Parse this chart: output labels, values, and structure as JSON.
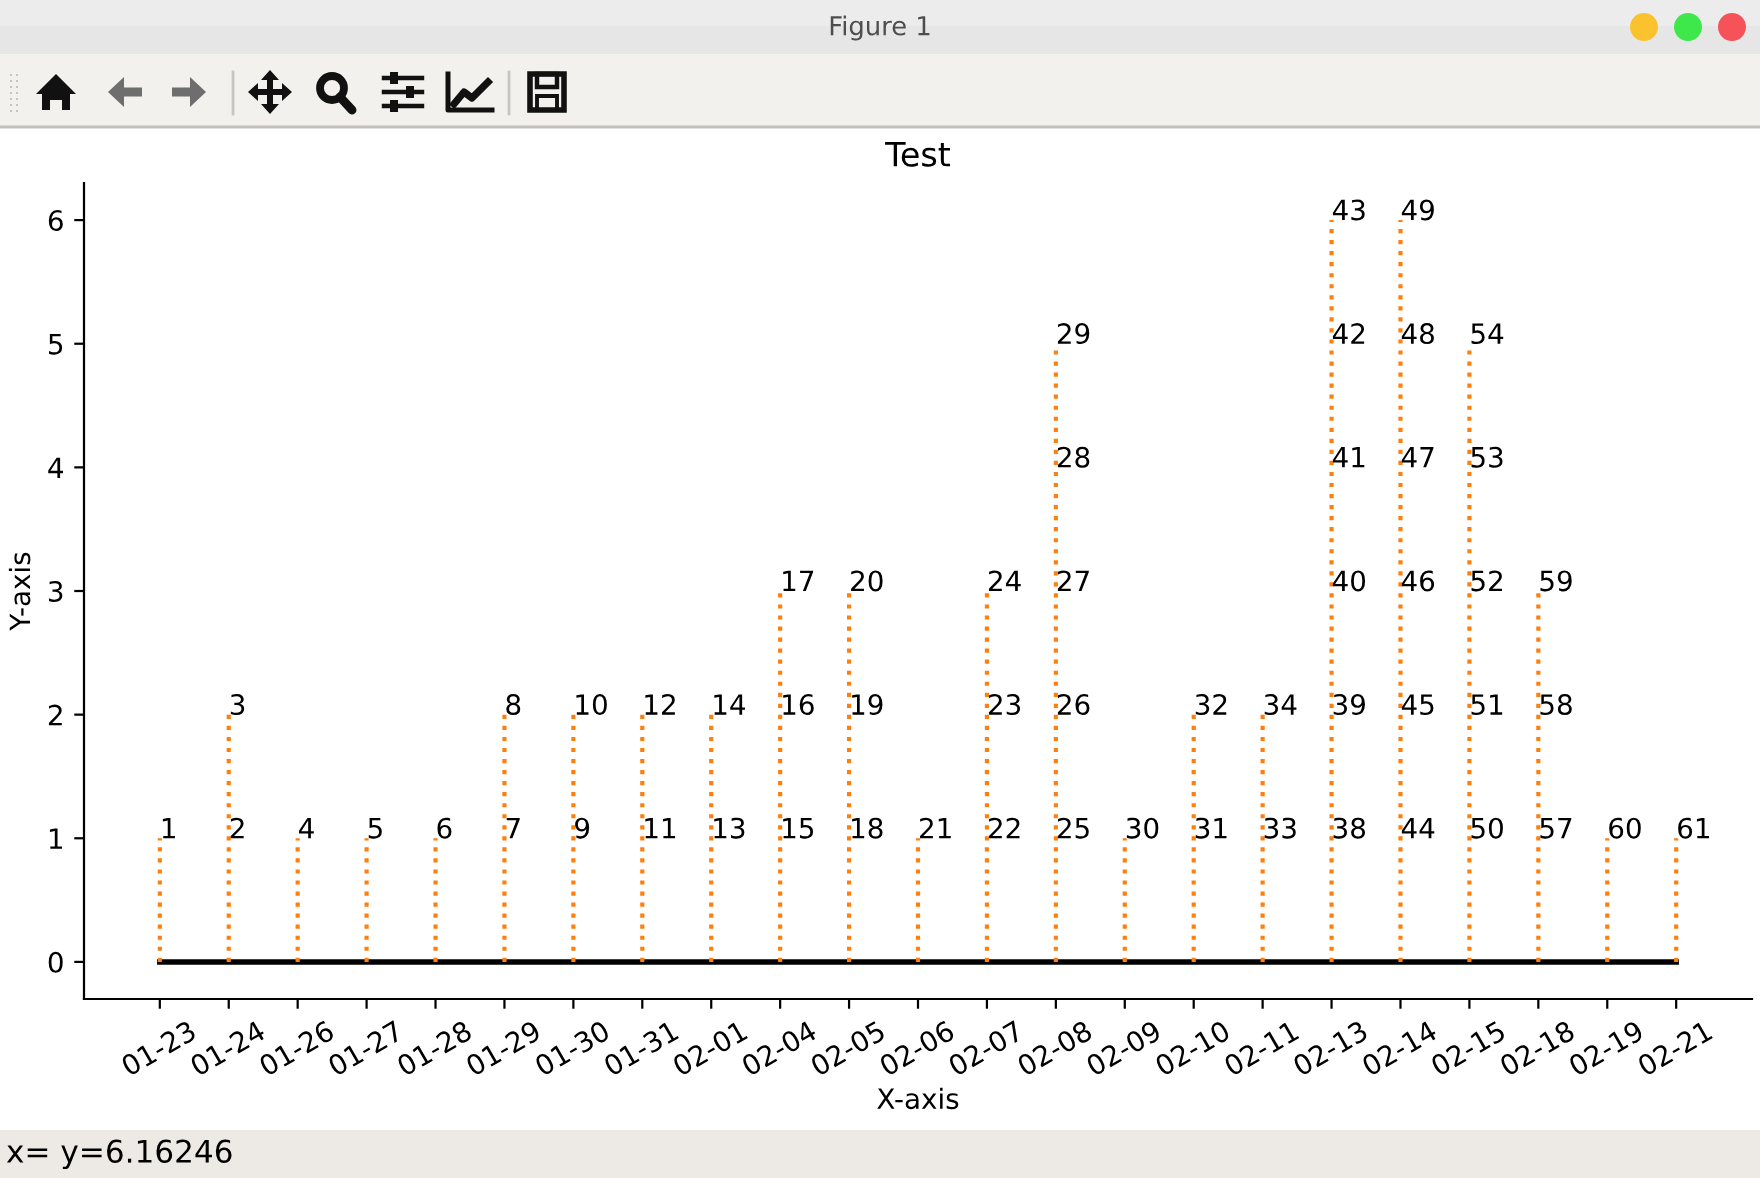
{
  "chart_data": {
    "type": "line",
    "title": "Test",
    "xlabel": "X-axis",
    "ylabel": "Y-axis",
    "categories": [
      "01-23",
      "01-24",
      "01-26",
      "01-27",
      "01-28",
      "01-29",
      "01-30",
      "01-31",
      "02-01",
      "02-04",
      "02-05",
      "02-06",
      "02-07",
      "02-08",
      "02-09",
      "02-10",
      "02-11",
      "02-13",
      "02-14",
      "02-15",
      "02-18",
      "02-19",
      "02-21"
    ],
    "series": [
      {
        "color": "#000000",
        "line_style": "solid",
        "values": [
          0,
          0,
          0,
          0,
          0,
          0,
          0,
          0,
          0,
          0,
          0,
          0,
          0,
          0,
          0,
          0,
          0,
          0,
          0,
          0,
          0,
          0,
          0
        ]
      },
      {
        "color": "#ff7f0e",
        "line_style": "dotted",
        "x": [
          "01-23",
          "01-23"
        ],
        "values": [
          0,
          1
        ]
      },
      {
        "color": "#ff7f0e",
        "line_style": "dotted",
        "x": [
          "01-24",
          "01-24",
          "01-24"
        ],
        "values": [
          0,
          1,
          2
        ]
      },
      {
        "color": "#ff7f0e",
        "line_style": "dotted",
        "x": [
          "01-26",
          "01-26"
        ],
        "values": [
          0,
          1
        ]
      },
      {
        "color": "#ff7f0e",
        "line_style": "dotted",
        "x": [
          "01-27",
          "01-27"
        ],
        "values": [
          0,
          1
        ]
      },
      {
        "color": "#ff7f0e",
        "line_style": "dotted",
        "x": [
          "01-28",
          "01-28"
        ],
        "values": [
          0,
          1
        ]
      },
      {
        "color": "#ff7f0e",
        "line_style": "dotted",
        "x": [
          "01-29",
          "01-29",
          "01-29"
        ],
        "values": [
          0,
          1,
          2
        ]
      },
      {
        "color": "#ff7f0e",
        "line_style": "dotted",
        "x": [
          "01-30",
          "01-30",
          "01-30"
        ],
        "values": [
          0,
          1,
          2
        ]
      },
      {
        "color": "#ff7f0e",
        "line_style": "dotted",
        "x": [
          "01-31",
          "01-31",
          "01-31"
        ],
        "values": [
          0,
          1,
          2
        ]
      },
      {
        "color": "#ff7f0e",
        "line_style": "dotted",
        "x": [
          "02-01",
          "02-01",
          "02-01"
        ],
        "values": [
          0,
          1,
          2
        ]
      },
      {
        "color": "#ff7f0e",
        "line_style": "dotted",
        "x": [
          "02-04",
          "02-04",
          "02-04",
          "02-04"
        ],
        "values": [
          0,
          1,
          2,
          3
        ]
      },
      {
        "color": "#ff7f0e",
        "line_style": "dotted",
        "x": [
          "02-05",
          "02-05",
          "02-05",
          "02-05"
        ],
        "values": [
          0,
          1,
          2,
          3
        ]
      },
      {
        "color": "#ff7f0e",
        "line_style": "dotted",
        "x": [
          "02-06",
          "02-06"
        ],
        "values": [
          0,
          1
        ]
      },
      {
        "color": "#ff7f0e",
        "line_style": "dotted",
        "x": [
          "02-07",
          "02-07",
          "02-07",
          "02-07"
        ],
        "values": [
          0,
          1,
          2,
          3
        ]
      },
      {
        "color": "#ff7f0e",
        "line_style": "dotted",
        "x": [
          "02-08",
          "02-08",
          "02-08",
          "02-08",
          "02-08",
          "02-08"
        ],
        "values": [
          0,
          1,
          2,
          3,
          4,
          5
        ]
      },
      {
        "color": "#ff7f0e",
        "line_style": "dotted",
        "x": [
          "02-09",
          "02-09"
        ],
        "values": [
          0,
          1
        ]
      },
      {
        "color": "#ff7f0e",
        "line_style": "dotted",
        "x": [
          "02-10",
          "02-10",
          "02-10"
        ],
        "values": [
          0,
          1,
          2
        ]
      },
      {
        "color": "#ff7f0e",
        "line_style": "dotted",
        "x": [
          "02-11",
          "02-11",
          "02-11"
        ],
        "values": [
          0,
          1,
          2
        ]
      },
      {
        "color": "#ff7f0e",
        "line_style": "dotted",
        "x": [
          "02-13",
          "02-13",
          "02-13",
          "02-13",
          "02-13",
          "02-13",
          "02-13"
        ],
        "values": [
          0,
          1,
          2,
          3,
          4,
          5,
          6
        ]
      },
      {
        "color": "#ff7f0e",
        "line_style": "dotted",
        "x": [
          "02-14",
          "02-14",
          "02-14",
          "02-14",
          "02-14",
          "02-14",
          "02-14"
        ],
        "values": [
          0,
          1,
          2,
          3,
          4,
          5,
          6
        ]
      },
      {
        "color": "#ff7f0e",
        "line_style": "dotted",
        "x": [
          "02-15",
          "02-15",
          "02-15",
          "02-15",
          "02-15",
          "02-15"
        ],
        "values": [
          0,
          1,
          2,
          3,
          4,
          5
        ]
      },
      {
        "color": "#ff7f0e",
        "line_style": "dotted",
        "x": [
          "02-18",
          "02-18",
          "02-18",
          "02-18"
        ],
        "values": [
          0,
          1,
          2,
          3
        ]
      },
      {
        "color": "#ff7f0e",
        "line_style": "dotted",
        "x": [
          "02-19",
          "02-19"
        ],
        "values": [
          0,
          1
        ]
      },
      {
        "color": "#ff7f0e",
        "line_style": "dotted",
        "x": [
          "02-21",
          "02-21"
        ],
        "values": [
          0,
          1
        ]
      }
    ],
    "marker": "none",
    "ylim": [
      -0.3,
      6.3
    ],
    "yticks": [
      0,
      1,
      2,
      3,
      4,
      5,
      6
    ],
    "annotations": [
      "Figure 1",
      "x= y=6.16246",
      {
        "text": "1",
        "x": "01-23",
        "y": 1
      },
      {
        "text": "2",
        "x": "01-24",
        "y": 1
      },
      {
        "text": "3",
        "x": "01-24",
        "y": 2
      },
      {
        "text": "4",
        "x": "01-26",
        "y": 1
      },
      {
        "text": "5",
        "x": "01-27",
        "y": 1
      },
      {
        "text": "6",
        "x": "01-28",
        "y": 1
      },
      {
        "text": "7",
        "x": "01-29",
        "y": 1
      },
      {
        "text": "8",
        "x": "01-29",
        "y": 2
      },
      {
        "text": "9",
        "x": "01-30",
        "y": 1
      },
      {
        "text": "10",
        "x": "01-30",
        "y": 2
      },
      {
        "text": "11",
        "x": "01-31",
        "y": 1
      },
      {
        "text": "12",
        "x": "01-31",
        "y": 2
      },
      {
        "text": "13",
        "x": "02-01",
        "y": 1
      },
      {
        "text": "14",
        "x": "02-01",
        "y": 2
      },
      {
        "text": "15",
        "x": "02-04",
        "y": 1
      },
      {
        "text": "16",
        "x": "02-04",
        "y": 2
      },
      {
        "text": "17",
        "x": "02-04",
        "y": 3
      },
      {
        "text": "18",
        "x": "02-05",
        "y": 1
      },
      {
        "text": "19",
        "x": "02-05",
        "y": 2
      },
      {
        "text": "20",
        "x": "02-05",
        "y": 3
      },
      {
        "text": "21",
        "x": "02-06",
        "y": 1
      },
      {
        "text": "22",
        "x": "02-07",
        "y": 1
      },
      {
        "text": "23",
        "x": "02-07",
        "y": 2
      },
      {
        "text": "24",
        "x": "02-07",
        "y": 3
      },
      {
        "text": "25",
        "x": "02-08",
        "y": 1
      },
      {
        "text": "26",
        "x": "02-08",
        "y": 2
      },
      {
        "text": "27",
        "x": "02-08",
        "y": 3
      },
      {
        "text": "28",
        "x": "02-08",
        "y": 4
      },
      {
        "text": "29",
        "x": "02-08",
        "y": 5
      },
      {
        "text": "30",
        "x": "02-09",
        "y": 1
      },
      {
        "text": "31",
        "x": "02-10",
        "y": 1
      },
      {
        "text": "32",
        "x": "02-10",
        "y": 2
      },
      {
        "text": "33",
        "x": "02-11",
        "y": 1
      },
      {
        "text": "34",
        "x": "02-11",
        "y": 2
      },
      {
        "text": "38",
        "x": "02-13",
        "y": 1
      },
      {
        "text": "39",
        "x": "02-13",
        "y": 2
      },
      {
        "text": "40",
        "x": "02-13",
        "y": 3
      },
      {
        "text": "41",
        "x": "02-13",
        "y": 4
      },
      {
        "text": "42",
        "x": "02-13",
        "y": 5
      },
      {
        "text": "43",
        "x": "02-13",
        "y": 6
      },
      {
        "text": "44",
        "x": "02-14",
        "y": 1
      },
      {
        "text": "45",
        "x": "02-14",
        "y": 2
      },
      {
        "text": "46",
        "x": "02-14",
        "y": 3
      },
      {
        "text": "47",
        "x": "02-14",
        "y": 4
      },
      {
        "text": "48",
        "x": "02-14",
        "y": 5
      },
      {
        "text": "49",
        "x": "02-14",
        "y": 6
      },
      {
        "text": "50",
        "x": "02-15",
        "y": 1
      },
      {
        "text": "51",
        "x": "02-15",
        "y": 2
      },
      {
        "text": "52",
        "x": "02-15",
        "y": 3
      },
      {
        "text": "53",
        "x": "02-15",
        "y": 4
      },
      {
        "text": "54",
        "x": "02-15",
        "y": 5
      },
      {
        "text": "57",
        "x": "02-18",
        "y": 1
      },
      {
        "text": "58",
        "x": "02-18",
        "y": 2
      },
      {
        "text": "59",
        "x": "02-18",
        "y": 3
      },
      {
        "text": "60",
        "x": "02-19",
        "y": 1
      },
      {
        "text": "61",
        "x": "02-21",
        "y": 1
      }
    ]
  }
}
